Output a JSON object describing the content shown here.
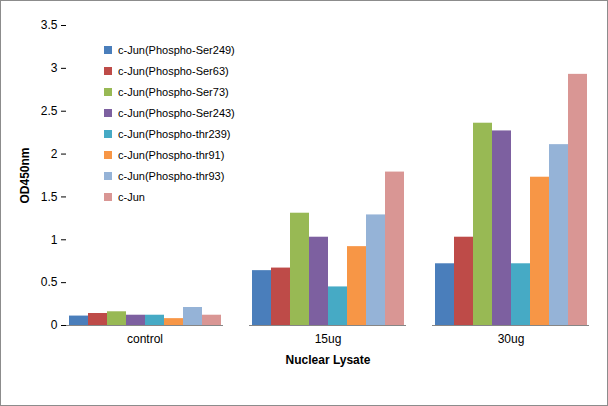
{
  "chart_data": {
    "type": "bar",
    "x_label": "Nuclear Lysate",
    "y_label": "OD450nm",
    "categories": [
      "control",
      "15ug",
      "30ug"
    ],
    "series": [
      {
        "name": "c-Jun(Phospho-Ser249)",
        "color": "#4a7ebb",
        "values": [
          0.11,
          0.64,
          0.72
        ]
      },
      {
        "name": "c-Jun(Phospho-Ser63)",
        "color": "#be4b48",
        "values": [
          0.14,
          0.67,
          1.03
        ]
      },
      {
        "name": "c-Jun(Phospho-Ser73)",
        "color": "#98b954",
        "values": [
          0.16,
          1.31,
          2.36
        ]
      },
      {
        "name": "c-Jun(Phospho-Ser243)",
        "color": "#7d60a0",
        "values": [
          0.12,
          1.03,
          2.27
        ]
      },
      {
        "name": "c-Jun(Phospho-thr239)",
        "color": "#46aac5",
        "values": [
          0.12,
          0.45,
          0.72
        ]
      },
      {
        "name": "c-Jun(Phospho-thr91)",
        "color": "#f79646",
        "values": [
          0.08,
          0.92,
          1.73
        ]
      },
      {
        "name": "c-Jun(Phospho-thr93)",
        "color": "#95b3d7",
        "values": [
          0.21,
          1.29,
          2.11
        ]
      },
      {
        "name": "c-Jun",
        "color": "#d99694",
        "values": [
          0.12,
          1.79,
          2.93
        ]
      }
    ],
    "ylim": [
      0,
      3.5
    ],
    "yticks": [
      0,
      0.5,
      1,
      1.5,
      2,
      2.5,
      3,
      3.5
    ],
    "grid": false,
    "legend": "upper left"
  }
}
